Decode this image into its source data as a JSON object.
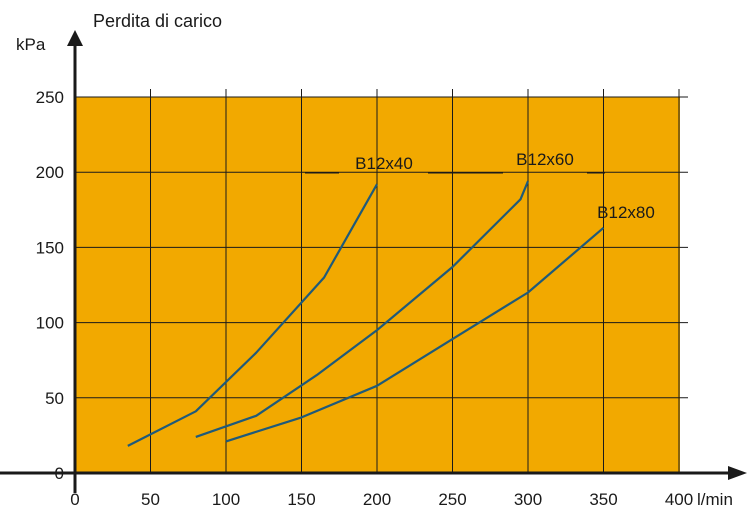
{
  "colors": {
    "plot_background": "#f2a900",
    "grid": "#1a1a1a",
    "series_line": "#1f5a7a",
    "axis": "#1a1a1a"
  },
  "chart_data": {
    "type": "line",
    "title": "Perdita di carico",
    "ylabel": "kPa",
    "xlabel": "l/min",
    "xlim": [
      0,
      400
    ],
    "ylim": [
      0,
      250
    ],
    "x_ticks": [
      0,
      50,
      100,
      150,
      200,
      250,
      300,
      350,
      400
    ],
    "y_ticks": [
      0,
      50,
      100,
      150,
      200,
      250
    ],
    "grid": true,
    "series": [
      {
        "name": "B12x40",
        "points": [
          [
            35,
            18
          ],
          [
            80,
            41
          ],
          [
            120,
            80
          ],
          [
            165,
            130
          ],
          [
            200,
            192
          ]
        ]
      },
      {
        "name": "B12x60",
        "points": [
          [
            80,
            24
          ],
          [
            120,
            38
          ],
          [
            160,
            65
          ],
          [
            200,
            95
          ],
          [
            250,
            137
          ],
          [
            295,
            182
          ],
          [
            300,
            194
          ]
        ]
      },
      {
        "name": "B12x80",
        "points": [
          [
            100,
            21
          ],
          [
            150,
            37
          ],
          [
            200,
            58
          ],
          [
            250,
            89
          ],
          [
            300,
            120
          ],
          [
            350,
            163
          ]
        ]
      }
    ]
  }
}
